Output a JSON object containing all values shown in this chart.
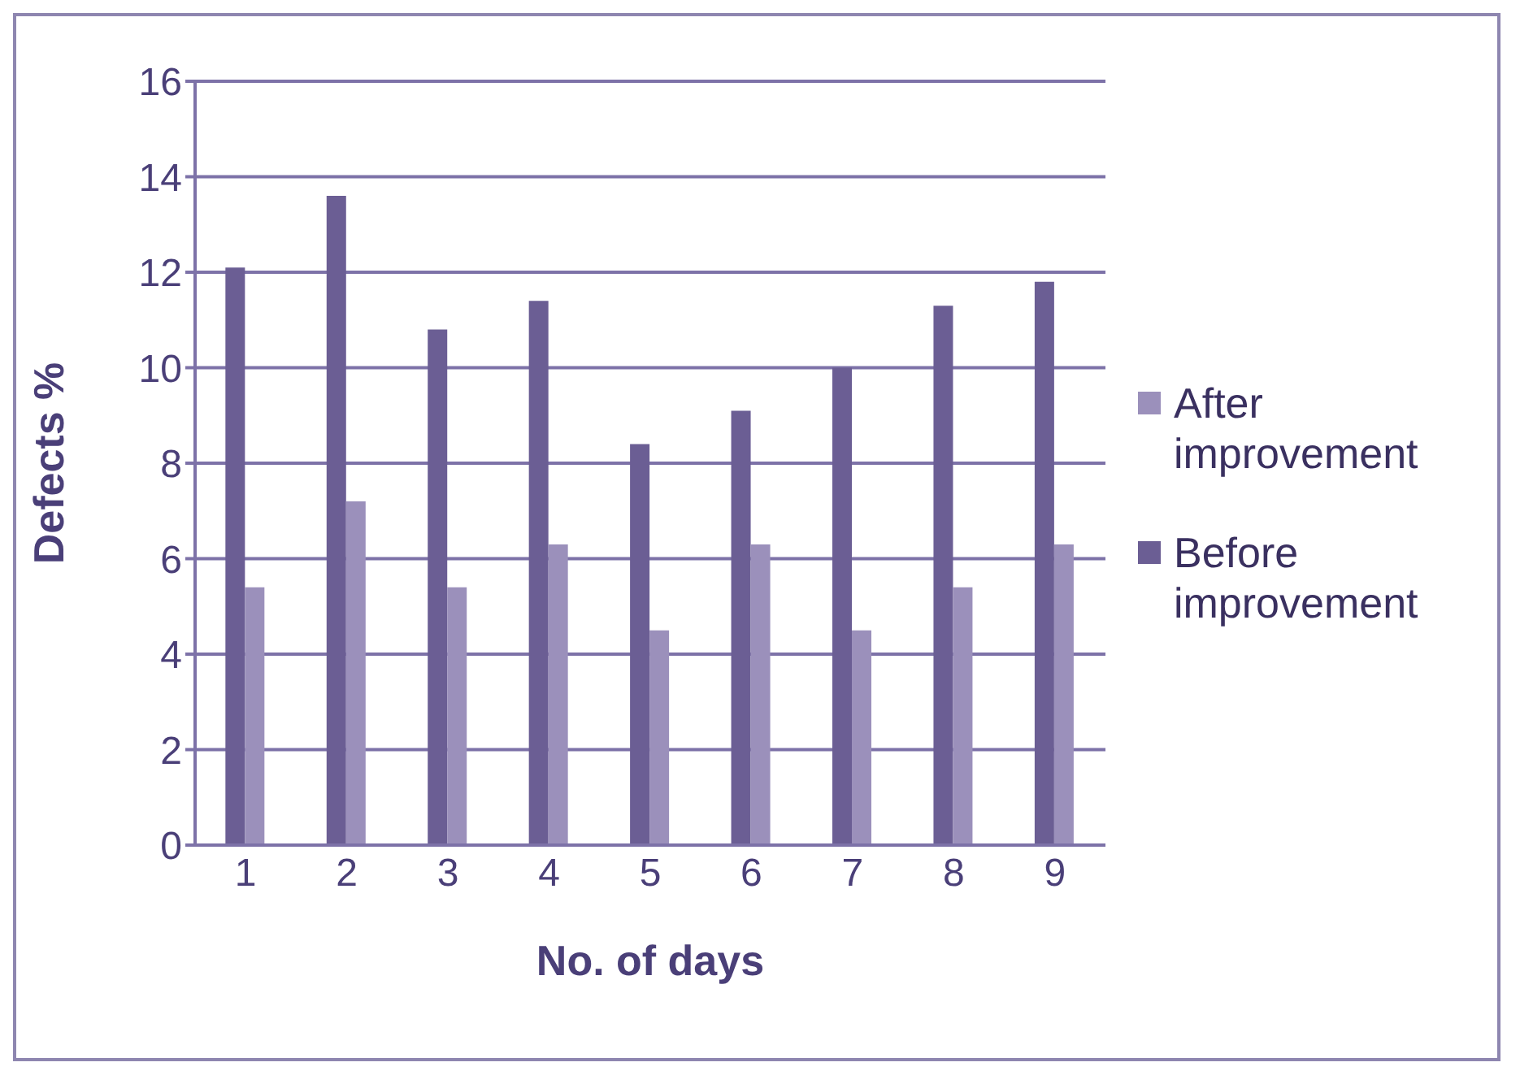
{
  "chart_data": {
    "type": "bar",
    "xlabel": "No. of days",
    "ylabel": "Defects %",
    "categories": [
      "1",
      "2",
      "3",
      "4",
      "5",
      "6",
      "7",
      "8",
      "9"
    ],
    "series": [
      {
        "name": "Before improvement",
        "color": "#6b5e94",
        "values": [
          12.1,
          13.6,
          10.8,
          11.4,
          8.4,
          9.1,
          10,
          11.3,
          11.8
        ]
      },
      {
        "name": "After improvement",
        "color": "#9b90bb",
        "values": [
          5.4,
          7.2,
          5.4,
          6.3,
          4.5,
          6.3,
          4.5,
          5.4,
          6.3
        ]
      }
    ],
    "ylim": [
      0,
      16
    ],
    "yticks": [
      0,
      2,
      4,
      6,
      8,
      10,
      12,
      14,
      16
    ],
    "grid": "y",
    "legend": "right"
  }
}
